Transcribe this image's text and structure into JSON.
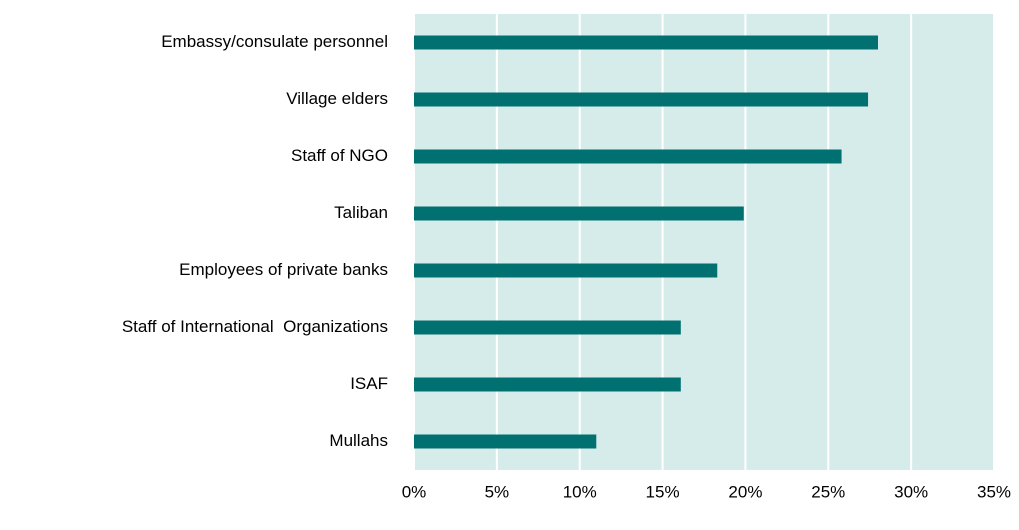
{
  "chart_data": {
    "type": "bar",
    "orientation": "horizontal",
    "categories": [
      "Embassy/consulate personnel",
      "Village elders",
      "Staff of NGO",
      "Taliban",
      "Employees of private banks",
      "Staff of International  Organizations",
      "ISAF",
      "Mullahs"
    ],
    "values": [
      28.0,
      27.4,
      25.8,
      19.9,
      18.3,
      16.1,
      16.1,
      11.0
    ],
    "color": "#007070",
    "xlim": [
      0,
      35
    ],
    "xticks": [
      {
        "value": 0,
        "label": "0%"
      },
      {
        "value": 5,
        "label": "5%"
      },
      {
        "value": 10,
        "label": "10%"
      },
      {
        "value": 15,
        "label": "15%"
      },
      {
        "value": 20,
        "label": "20%"
      },
      {
        "value": 25,
        "label": "25%"
      },
      {
        "value": 30,
        "label": "30%"
      },
      {
        "value": 35,
        "label": "35%"
      }
    ],
    "grid": true
  }
}
